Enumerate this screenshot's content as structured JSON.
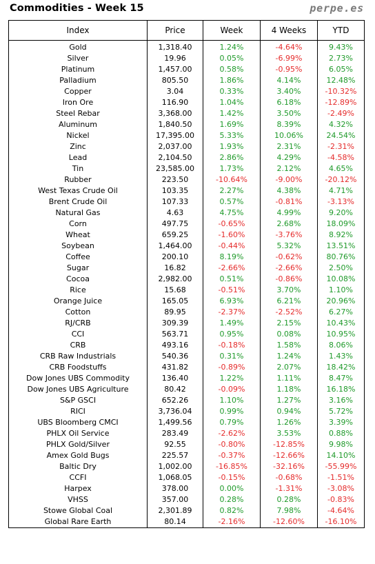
{
  "header": {
    "title": "Commodities - Week 15",
    "brand": "perpe.es"
  },
  "colors": {
    "positive": "#1f9a2a",
    "negative": "#e52b2b"
  },
  "table": {
    "columns": [
      "Index",
      "Price",
      "Week",
      "4 Weeks",
      "YTD"
    ],
    "rows": [
      [
        "Gold",
        "1,318.40",
        "1.24%",
        "-4.64%",
        "9.43%"
      ],
      [
        "Silver",
        "19.96",
        "0.05%",
        "-6.99%",
        "2.73%"
      ],
      [
        "Platinum",
        "1,457.00",
        "0.58%",
        "-0.95%",
        "6.05%"
      ],
      [
        "Palladium",
        "805.50",
        "1.86%",
        "4.14%",
        "12.48%"
      ],
      [
        "Copper",
        "3.04",
        "0.33%",
        "3.40%",
        "-10.32%"
      ],
      [
        "Iron Ore",
        "116.90",
        "1.04%",
        "6.18%",
        "-12.89%"
      ],
      [
        "Steel Rebar",
        "3,368.00",
        "1.42%",
        "3.50%",
        "-2.49%"
      ],
      [
        "Aluminum",
        "1,840.50",
        "1.69%",
        "8.39%",
        "4.32%"
      ],
      [
        "Nickel",
        "17,395.00",
        "5.33%",
        "10.06%",
        "24.54%"
      ],
      [
        "Zinc",
        "2,037.00",
        "1.93%",
        "2.31%",
        "-2.31%"
      ],
      [
        "Lead",
        "2,104.50",
        "2.86%",
        "4.29%",
        "-4.58%"
      ],
      [
        "Tin",
        "23,585.00",
        "1.73%",
        "2.12%",
        "4.65%"
      ],
      [
        "Rubber",
        "223.50",
        "-10.64%",
        "-9.00%",
        "-20.12%"
      ],
      [
        "West Texas Crude Oil",
        "103.35",
        "2.27%",
        "4.38%",
        "4.71%"
      ],
      [
        "Brent Crude Oil",
        "107.33",
        "0.57%",
        "-0.81%",
        "-3.13%"
      ],
      [
        "Natural Gas",
        "4.63",
        "4.75%",
        "4.99%",
        "9.20%"
      ],
      [
        "Corn",
        "497.75",
        "-0.65%",
        "2.68%",
        "18.09%"
      ],
      [
        "Wheat",
        "659.25",
        "-1.60%",
        "-3.76%",
        "8.92%"
      ],
      [
        "Soybean",
        "1,464.00",
        "-0.44%",
        "5.32%",
        "13.51%"
      ],
      [
        "Coffee",
        "200.10",
        "8.19%",
        "-0.62%",
        "80.76%"
      ],
      [
        "Sugar",
        "16.82",
        "-2.66%",
        "-2.66%",
        "2.50%"
      ],
      [
        "Cocoa",
        "2,982.00",
        "0.51%",
        "-0.86%",
        "10.08%"
      ],
      [
        "Rice",
        "15.68",
        "-0.51%",
        "3.70%",
        "1.10%"
      ],
      [
        "Orange Juice",
        "165.05",
        "6.93%",
        "6.21%",
        "20.96%"
      ],
      [
        "Cotton",
        "89.95",
        "-2.37%",
        "-2.52%",
        "6.27%"
      ],
      [
        "RJ/CRB",
        "309.39",
        "1.49%",
        "2.15%",
        "10.43%"
      ],
      [
        "CCI",
        "563.71",
        "0.95%",
        "0.08%",
        "10.95%"
      ],
      [
        "CRB",
        "493.16",
        "-0.18%",
        "1.58%",
        "8.06%"
      ],
      [
        "CRB Raw Industrials",
        "540.36",
        "0.31%",
        "1.24%",
        "1.43%"
      ],
      [
        "CRB Foodstuffs",
        "431.82",
        "-0.89%",
        "2.07%",
        "18.42%"
      ],
      [
        "Dow Jones UBS Commodity",
        "136.40",
        "1.22%",
        "1.11%",
        "8.47%"
      ],
      [
        "Dow Jones UBS Agriculture",
        "80.42",
        "-0.09%",
        "1.18%",
        "16.18%"
      ],
      [
        "S&P GSCI",
        "652.26",
        "1.10%",
        "1.27%",
        "3.16%"
      ],
      [
        "RICI",
        "3,736.04",
        "0.99%",
        "0.94%",
        "5.72%"
      ],
      [
        "UBS Bloomberg CMCI",
        "1,499.56",
        "0.79%",
        "1.26%",
        "3.39%"
      ],
      [
        "PHLX Oil Service",
        "283.49",
        "-2.62%",
        "3.53%",
        "0.88%"
      ],
      [
        "PHLX Gold/Silver",
        "92.55",
        "-0.80%",
        "-12.85%",
        "9.98%"
      ],
      [
        "Amex Gold Bugs",
        "225.57",
        "-0.37%",
        "-12.66%",
        "14.10%"
      ],
      [
        "Baltic Dry",
        "1,002.00",
        "-16.85%",
        "-32.16%",
        "-55.99%"
      ],
      [
        "CCFI",
        "1,068.05",
        "-0.15%",
        "-0.68%",
        "-1.51%"
      ],
      [
        "Harpex",
        "378.00",
        "0.00%",
        "-1.31%",
        "-3.08%"
      ],
      [
        "VHSS",
        "357.00",
        "0.28%",
        "0.28%",
        "-0.83%"
      ],
      [
        "Stowe Global Coal",
        "2,301.89",
        "0.82%",
        "7.98%",
        "-4.64%"
      ],
      [
        "Global Rare Earth",
        "80.14",
        "-2.16%",
        "-12.60%",
        "-16.10%"
      ]
    ]
  }
}
